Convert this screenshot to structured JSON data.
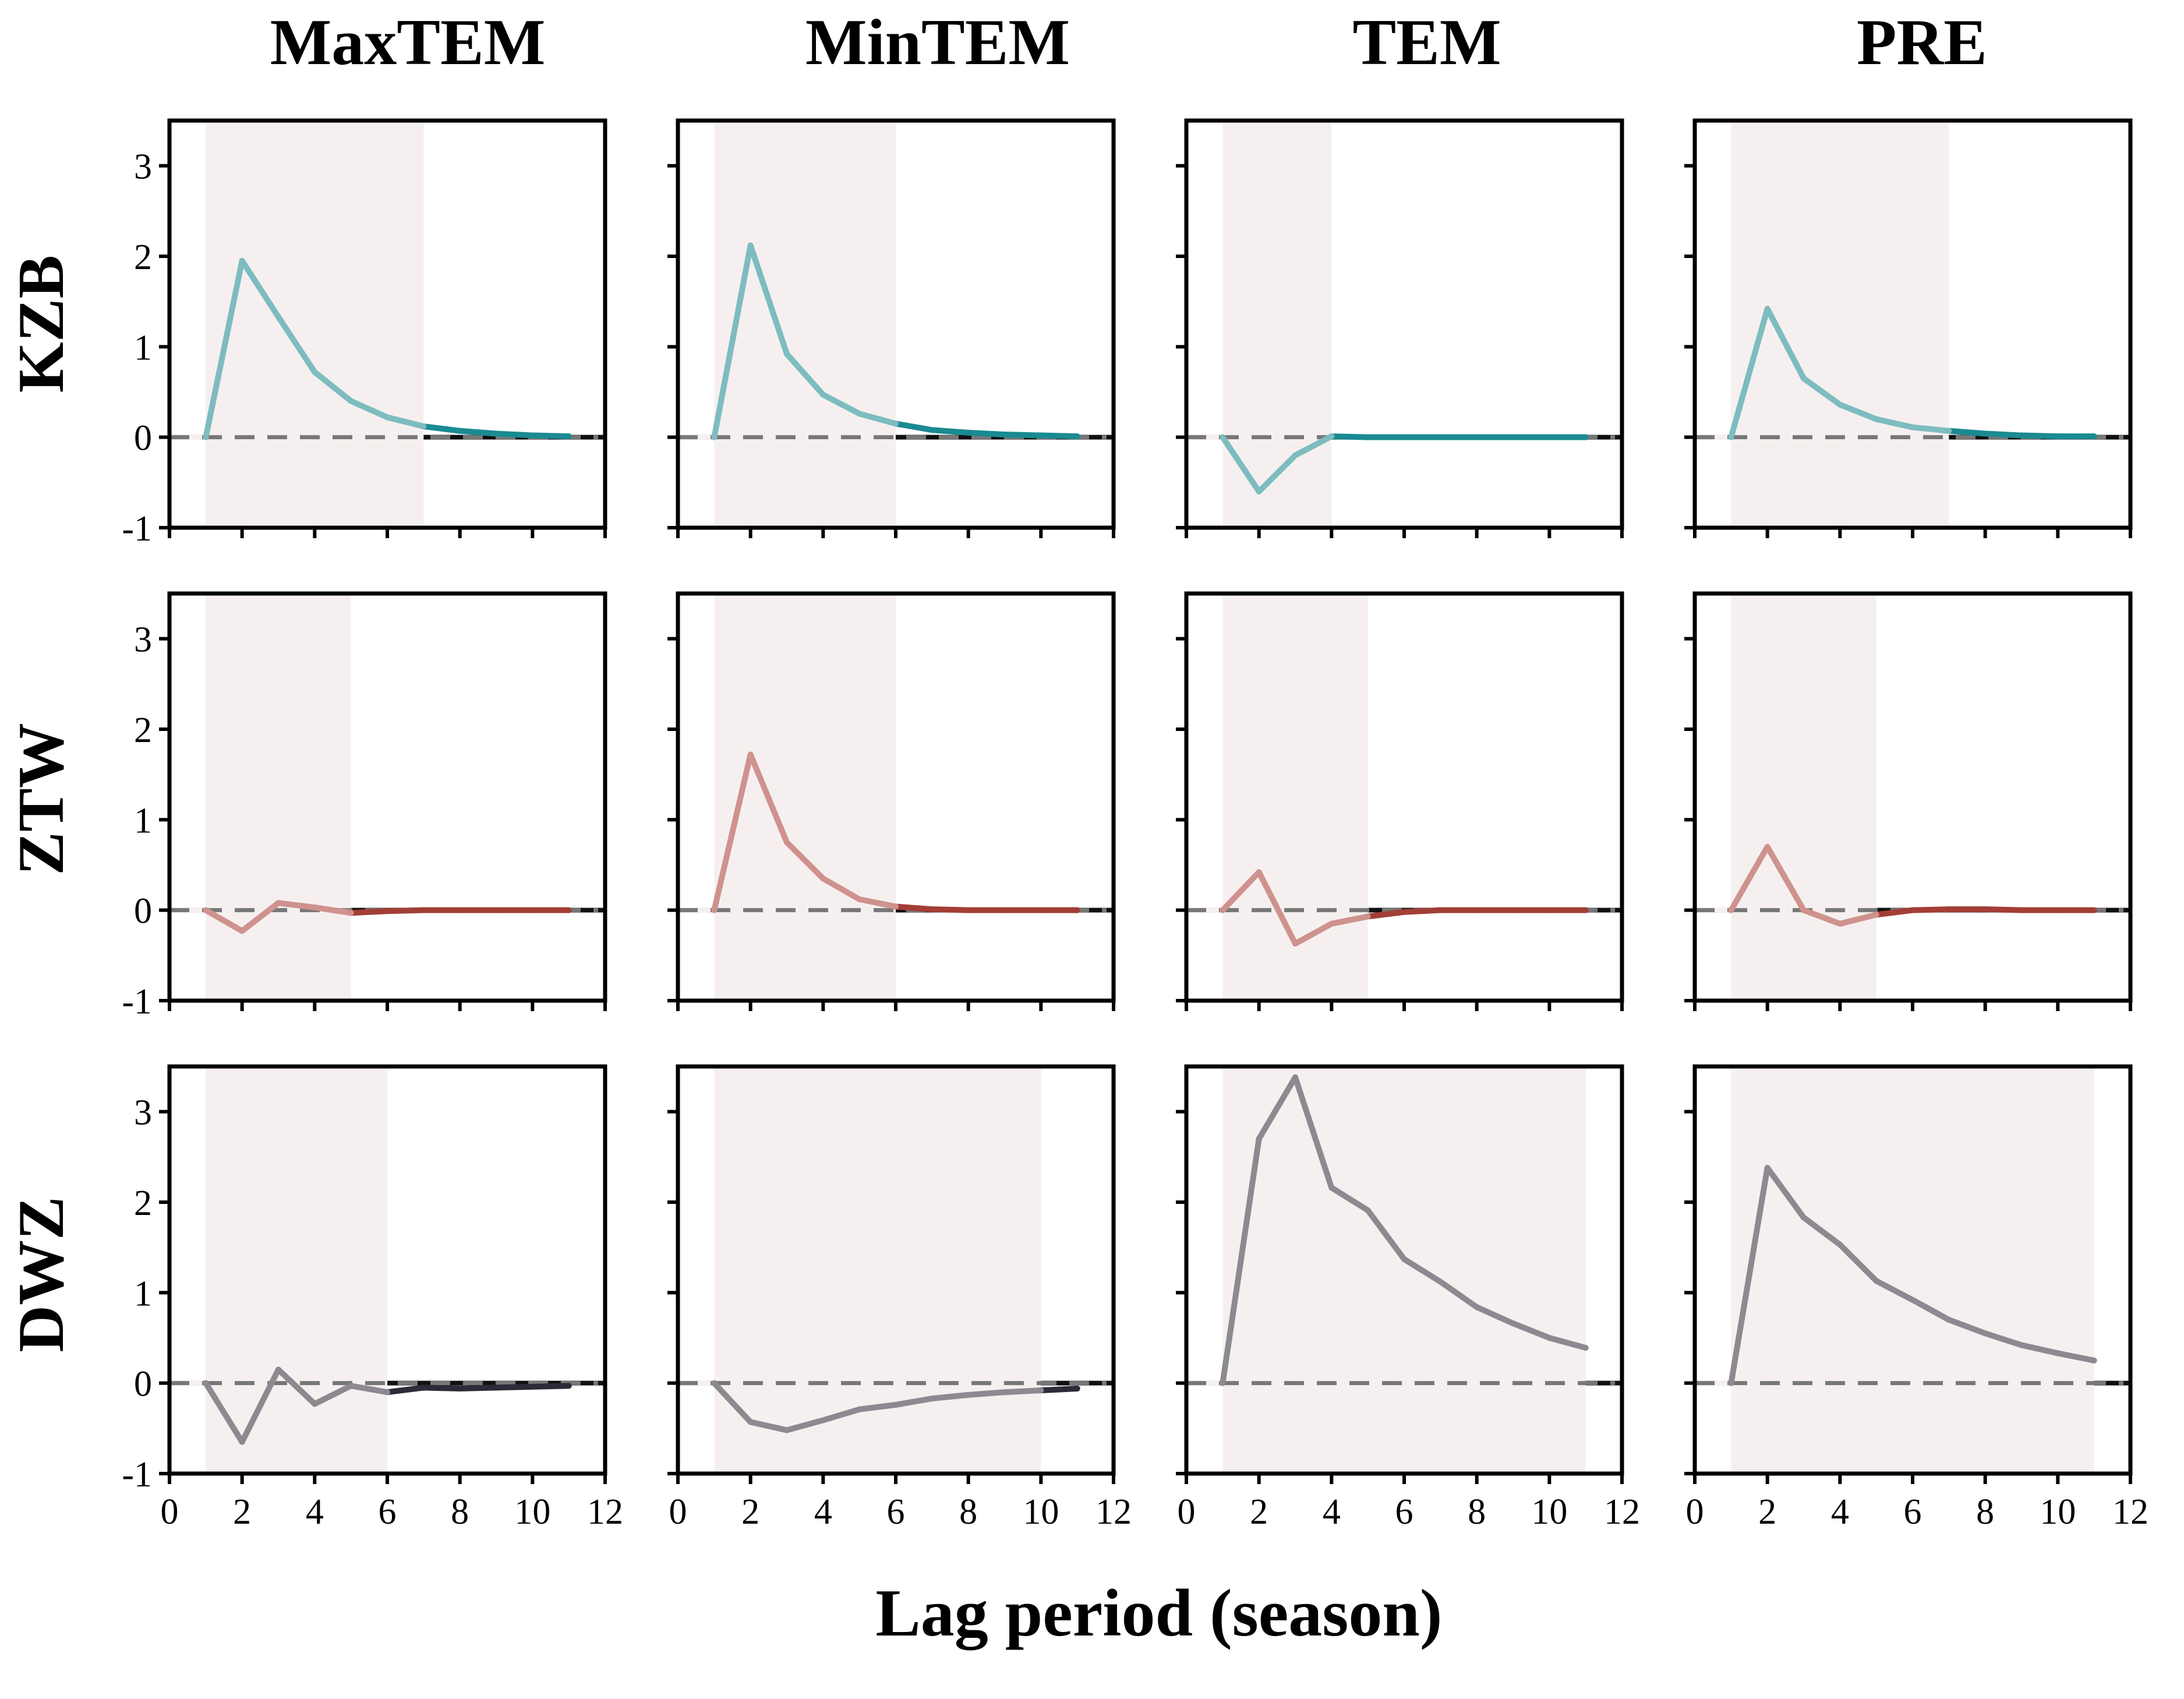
{
  "figure": {
    "column_titles": [
      "MaxTEM",
      "MinTEM",
      "TEM",
      "PRE"
    ],
    "row_labels": [
      "KZB",
      "ZTW",
      "DWZ"
    ],
    "x_title": "Lag period (season)"
  },
  "colors": {
    "KZB": {
      "light": "#7dbcbf",
      "dark": "#1a8a92"
    },
    "ZTW": {
      "light": "#cf928e",
      "dark": "#a23e36"
    },
    "DWZ": {
      "light": "#8c8991",
      "dark": "#2c2b38"
    },
    "shade": "#f5f0ef",
    "zero_line": "#777777",
    "zero_line_tail": "#111111"
  },
  "chart_data": [
    {
      "type": "line",
      "row": "KZB",
      "column": "MaxTEM",
      "x": [
        1,
        2,
        3,
        4,
        5,
        6,
        7,
        8,
        9,
        10,
        11
      ],
      "y": [
        0,
        1.95,
        1.33,
        0.72,
        0.4,
        0.22,
        0.12,
        0.07,
        0.04,
        0.02,
        0.01
      ],
      "shaded_x": [
        1,
        7
      ],
      "title": "",
      "xlabel": "",
      "ylabel": "",
      "xlim": [
        0,
        12
      ],
      "ylim": [
        -1,
        3.5
      ],
      "xticks": [
        0,
        2,
        4,
        6,
        8,
        10,
        12
      ],
      "yticks": [
        -1,
        0,
        1,
        2,
        3
      ],
      "grid": false,
      "legend": "none"
    },
    {
      "type": "line",
      "row": "KZB",
      "column": "MinTEM",
      "x": [
        1,
        2,
        3,
        4,
        5,
        6,
        7,
        8,
        9,
        10,
        11
      ],
      "y": [
        0,
        2.12,
        0.92,
        0.47,
        0.26,
        0.15,
        0.08,
        0.05,
        0.03,
        0.02,
        0.01
      ],
      "shaded_x": [
        1,
        6
      ],
      "title": "",
      "xlabel": "",
      "ylabel": "",
      "xlim": [
        0,
        12
      ],
      "ylim": [
        -1,
        3.5
      ],
      "xticks": [
        0,
        2,
        4,
        6,
        8,
        10,
        12
      ],
      "yticks": [
        -1,
        0,
        1,
        2,
        3
      ],
      "grid": false,
      "legend": "none"
    },
    {
      "type": "line",
      "row": "KZB",
      "column": "TEM",
      "x": [
        1,
        2,
        3,
        4,
        5,
        6,
        7,
        8,
        9,
        10,
        11
      ],
      "y": [
        0,
        -0.6,
        -0.2,
        0.01,
        0,
        0,
        0,
        0,
        0,
        0,
        0
      ],
      "shaded_x": [
        1,
        4
      ],
      "title": "",
      "xlabel": "",
      "ylabel": "",
      "xlim": [
        0,
        12
      ],
      "ylim": [
        -1,
        3.5
      ],
      "xticks": [
        0,
        2,
        4,
        6,
        8,
        10,
        12
      ],
      "yticks": [
        -1,
        0,
        1,
        2,
        3
      ],
      "grid": false,
      "legend": "none"
    },
    {
      "type": "line",
      "row": "KZB",
      "column": "PRE",
      "x": [
        1,
        2,
        3,
        4,
        5,
        6,
        7,
        8,
        9,
        10,
        11
      ],
      "y": [
        0,
        1.42,
        0.65,
        0.36,
        0.2,
        0.11,
        0.07,
        0.04,
        0.02,
        0.01,
        0.01
      ],
      "shaded_x": [
        1,
        7
      ],
      "title": "",
      "xlabel": "",
      "ylabel": "",
      "xlim": [
        0,
        12
      ],
      "ylim": [
        -1,
        3.5
      ],
      "xticks": [
        0,
        2,
        4,
        6,
        8,
        10,
        12
      ],
      "yticks": [
        -1,
        0,
        1,
        2,
        3
      ],
      "grid": false,
      "legend": "none"
    },
    {
      "type": "line",
      "row": "ZTW",
      "column": "MaxTEM",
      "x": [
        1,
        2,
        3,
        4,
        5,
        6,
        7,
        8,
        9,
        10,
        11
      ],
      "y": [
        0,
        -0.23,
        0.08,
        0.03,
        -0.03,
        -0.01,
        0,
        0,
        0,
        0,
        0
      ],
      "shaded_x": [
        1,
        5
      ],
      "title": "",
      "xlabel": "",
      "ylabel": "",
      "xlim": [
        0,
        12
      ],
      "ylim": [
        -1,
        3.5
      ],
      "xticks": [
        0,
        2,
        4,
        6,
        8,
        10,
        12
      ],
      "yticks": [
        -1,
        0,
        1,
        2,
        3
      ],
      "grid": false,
      "legend": "none"
    },
    {
      "type": "line",
      "row": "ZTW",
      "column": "MinTEM",
      "x": [
        1,
        2,
        3,
        4,
        5,
        6,
        7,
        8,
        9,
        10,
        11
      ],
      "y": [
        0,
        1.72,
        0.75,
        0.35,
        0.12,
        0.04,
        0.01,
        0,
        0,
        0,
        0
      ],
      "shaded_x": [
        1,
        6
      ],
      "title": "",
      "xlabel": "",
      "ylabel": "",
      "xlim": [
        0,
        12
      ],
      "ylim": [
        -1,
        3.5
      ],
      "xticks": [
        0,
        2,
        4,
        6,
        8,
        10,
        12
      ],
      "yticks": [
        -1,
        0,
        1,
        2,
        3
      ],
      "grid": false,
      "legend": "none"
    },
    {
      "type": "line",
      "row": "ZTW",
      "column": "TEM",
      "x": [
        1,
        2,
        3,
        4,
        5,
        6,
        7,
        8,
        9,
        10,
        11
      ],
      "y": [
        0,
        0.42,
        -0.37,
        -0.15,
        -0.07,
        -0.02,
        0,
        0,
        0,
        0,
        0
      ],
      "shaded_x": [
        1,
        5
      ],
      "title": "",
      "xlabel": "",
      "ylabel": "",
      "xlim": [
        0,
        12
      ],
      "ylim": [
        -1,
        3.5
      ],
      "xticks": [
        0,
        2,
        4,
        6,
        8,
        10,
        12
      ],
      "yticks": [
        -1,
        0,
        1,
        2,
        3
      ],
      "grid": false,
      "legend": "none"
    },
    {
      "type": "line",
      "row": "ZTW",
      "column": "PRE",
      "x": [
        1,
        2,
        3,
        4,
        5,
        6,
        7,
        8,
        9,
        10,
        11
      ],
      "y": [
        0,
        0.7,
        0,
        -0.15,
        -0.05,
        0,
        0.01,
        0.01,
        0,
        0,
        0
      ],
      "shaded_x": [
        1,
        5
      ],
      "title": "",
      "xlabel": "",
      "ylabel": "",
      "xlim": [
        0,
        12
      ],
      "ylim": [
        -1,
        3.5
      ],
      "xticks": [
        0,
        2,
        4,
        6,
        8,
        10,
        12
      ],
      "yticks": [
        -1,
        0,
        1,
        2,
        3
      ],
      "grid": false,
      "legend": "none"
    },
    {
      "type": "line",
      "row": "DWZ",
      "column": "MaxTEM",
      "x": [
        1,
        2,
        3,
        4,
        5,
        6,
        7,
        8,
        9,
        10,
        11
      ],
      "y": [
        0,
        -0.65,
        0.15,
        -0.23,
        -0.03,
        -0.1,
        -0.05,
        -0.06,
        -0.05,
        -0.04,
        -0.03
      ],
      "shaded_x": [
        1,
        6
      ],
      "title": "",
      "xlabel": "",
      "ylabel": "",
      "xlim": [
        0,
        12
      ],
      "ylim": [
        -1,
        3.5
      ],
      "xticks": [
        0,
        2,
        4,
        6,
        8,
        10,
        12
      ],
      "yticks": [
        -1,
        0,
        1,
        2,
        3
      ],
      "grid": false,
      "legend": "none"
    },
    {
      "type": "line",
      "row": "DWZ",
      "column": "MinTEM",
      "x": [
        1,
        2,
        3,
        4,
        5,
        6,
        7,
        8,
        9,
        10,
        11
      ],
      "y": [
        0,
        -0.43,
        -0.52,
        -0.41,
        -0.29,
        -0.24,
        -0.17,
        -0.13,
        -0.1,
        -0.08,
        -0.06
      ],
      "shaded_x": [
        1,
        10
      ],
      "title": "",
      "xlabel": "",
      "ylabel": "",
      "xlim": [
        0,
        12
      ],
      "ylim": [
        -1,
        3.5
      ],
      "xticks": [
        0,
        2,
        4,
        6,
        8,
        10,
        12
      ],
      "yticks": [
        -1,
        0,
        1,
        2,
        3
      ],
      "grid": false,
      "legend": "none"
    },
    {
      "type": "line",
      "row": "DWZ",
      "column": "TEM",
      "x": [
        1,
        2,
        3,
        4,
        5,
        6,
        7,
        8,
        9,
        10,
        11
      ],
      "y": [
        0,
        2.7,
        3.38,
        2.16,
        1.91,
        1.37,
        1.12,
        0.84,
        0.66,
        0.5,
        0.39
      ],
      "shaded_x": [
        1,
        11
      ],
      "title": "",
      "xlabel": "",
      "ylabel": "",
      "xlim": [
        0,
        12
      ],
      "ylim": [
        -1,
        3.5
      ],
      "xticks": [
        0,
        2,
        4,
        6,
        8,
        10,
        12
      ],
      "yticks": [
        -1,
        0,
        1,
        2,
        3
      ],
      "grid": false,
      "legend": "none"
    },
    {
      "type": "line",
      "row": "DWZ",
      "column": "PRE",
      "x": [
        1,
        2,
        3,
        4,
        5,
        6,
        7,
        8,
        9,
        10,
        11
      ],
      "y": [
        0,
        2.38,
        1.83,
        1.53,
        1.13,
        0.92,
        0.7,
        0.55,
        0.42,
        0.33,
        0.25
      ],
      "shaded_x": [
        1,
        11
      ],
      "title": "",
      "xlabel": "",
      "ylabel": "",
      "xlim": [
        0,
        12
      ],
      "ylim": [
        -1,
        3.5
      ],
      "xticks": [
        0,
        2,
        4,
        6,
        8,
        10,
        12
      ],
      "yticks": [
        -1,
        0,
        1,
        2,
        3
      ],
      "grid": false,
      "legend": "none"
    }
  ]
}
